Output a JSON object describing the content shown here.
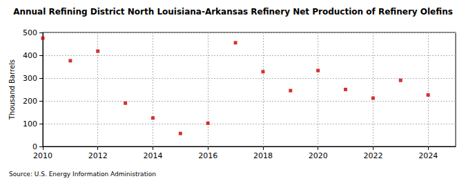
{
  "chart_data": {
    "type": "scatter",
    "title": "Annual Refining District North Louisiana-Arkansas Refinery Net Production of Refinery Olefins",
    "y_label": "Thousand Barrels",
    "source": "Source: U.S. Energy Information Administration",
    "x": [
      2010,
      2011,
      2012,
      2013,
      2014,
      2015,
      2016,
      2017,
      2018,
      2019,
      2020,
      2021,
      2022,
      2023,
      2024
    ],
    "values": [
      475,
      376,
      418,
      190,
      125,
      57,
      102,
      455,
      328,
      245,
      333,
      250,
      212,
      290,
      226
    ],
    "color": "#cc0000",
    "marker": "square",
    "xlim": [
      2010,
      2025
    ],
    "xticks": [
      2010,
      2012,
      2014,
      2016,
      2018,
      2020,
      2022,
      2024
    ],
    "ylim": [
      0,
      500
    ],
    "yticks": [
      0,
      100,
      200,
      300,
      400,
      500
    ],
    "grid": true
  }
}
